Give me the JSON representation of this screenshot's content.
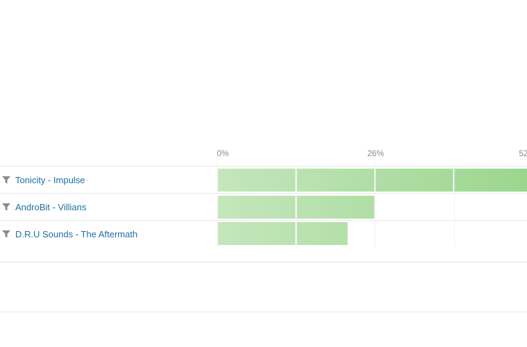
{
  "chart_data": {
    "type": "bar",
    "orientation": "horizontal",
    "stacked": true,
    "categories": [
      "Tonicity - Impulse",
      "AndroBit - Villians",
      "D.R.U Sounds - The Aftermath"
    ],
    "segments": [
      [
        13,
        13,
        13,
        13
      ],
      [
        13,
        13
      ],
      [
        13,
        8.6
      ]
    ],
    "values": [
      52,
      26,
      21.6
    ],
    "xaxis": {
      "unit": "%",
      "min": 0,
      "max": 52,
      "ticks": [
        0,
        26,
        52
      ],
      "tick_labels": [
        "0%",
        "26%",
        "52"
      ]
    },
    "colors": {
      "bar_light": "#c4e6bc",
      "bar_dark": "#9bd68d",
      "segment_gap": "#ffffff"
    },
    "grid": true,
    "legend": "none"
  },
  "rows": [
    {
      "label": "Tonicity - Impulse",
      "icon": "filter-icon"
    },
    {
      "label": "AndroBit - Villians",
      "icon": "filter-icon"
    },
    {
      "label": "D.R.U Sounds - The Aftermath",
      "icon": "filter-icon"
    }
  ]
}
